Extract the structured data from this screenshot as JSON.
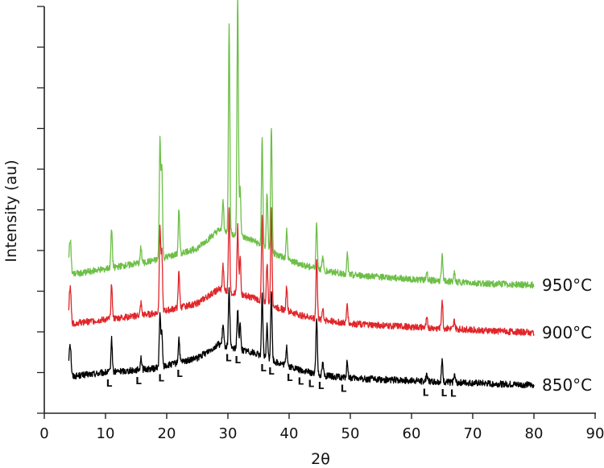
{
  "chart_data": {
    "type": "line",
    "xlabel": "2θ",
    "ylabel": "Intensity (au)",
    "xlim": [
      0,
      90
    ],
    "xticks": [
      0,
      10,
      20,
      30,
      40,
      50,
      60,
      70,
      80,
      90
    ],
    "ylim": [
      0,
      100
    ],
    "y_tick_labels_shown": false,
    "grid": false,
    "legend": "labels at right end of each trace",
    "series": [
      {
        "name": "850°C",
        "color": "#000000",
        "baseline": [
          [
            4,
            9
          ],
          [
            10,
            10
          ],
          [
            18,
            11
          ],
          [
            25,
            13.5
          ],
          [
            28.5,
            17
          ],
          [
            31,
            16
          ],
          [
            34,
            15
          ],
          [
            38,
            12.5
          ],
          [
            42,
            10.5
          ],
          [
            46,
            9.2
          ],
          [
            50,
            8.6
          ],
          [
            60,
            8
          ],
          [
            70,
            7.4
          ],
          [
            80,
            6.9
          ]
        ],
        "peaks": [
          [
            4.3,
            6
          ],
          [
            11,
            8
          ],
          [
            15.8,
            3
          ],
          [
            18.9,
            13
          ],
          [
            19.2,
            8
          ],
          [
            22,
            6
          ],
          [
            29.2,
            5
          ],
          [
            30.2,
            14
          ],
          [
            31.6,
            10
          ],
          [
            32,
            6
          ],
          [
            35.6,
            15
          ],
          [
            36.4,
            8
          ],
          [
            37.1,
            17
          ],
          [
            39.6,
            5
          ],
          [
            44.5,
            14
          ],
          [
            45.5,
            3
          ],
          [
            49.5,
            4
          ],
          [
            62.5,
            2
          ],
          [
            65,
            5
          ],
          [
            67,
            2
          ]
        ]
      },
      {
        "name": "900°C",
        "color": "#e0262a",
        "baseline": [
          [
            4,
            22
          ],
          [
            10,
            23
          ],
          [
            18,
            24.5
          ],
          [
            25,
            27
          ],
          [
            28.5,
            30.5
          ],
          [
            31,
            29.5
          ],
          [
            34,
            28.5
          ],
          [
            38,
            26
          ],
          [
            42,
            24
          ],
          [
            46,
            22.8
          ],
          [
            50,
            22
          ],
          [
            60,
            21.2
          ],
          [
            70,
            20.5
          ],
          [
            80,
            19.8
          ]
        ],
        "peaks": [
          [
            4.3,
            7
          ],
          [
            11,
            9
          ],
          [
            15.8,
            3
          ],
          [
            18.9,
            21
          ],
          [
            19.2,
            15
          ],
          [
            22,
            9
          ],
          [
            29.2,
            6
          ],
          [
            30.2,
            21
          ],
          [
            31.6,
            17
          ],
          [
            32,
            9
          ],
          [
            35.6,
            21
          ],
          [
            36.4,
            10
          ],
          [
            37.1,
            24
          ],
          [
            39.6,
            6
          ],
          [
            44.5,
            15
          ],
          [
            45.5,
            3
          ],
          [
            49.5,
            5
          ],
          [
            62.5,
            2
          ],
          [
            65,
            7
          ],
          [
            67,
            2
          ]
        ]
      },
      {
        "name": "950°C",
        "color": "#6dbf47",
        "baseline": [
          [
            4,
            34
          ],
          [
            10,
            35.5
          ],
          [
            18,
            37.5
          ],
          [
            25,
            40.5
          ],
          [
            28.5,
            45
          ],
          [
            31,
            44
          ],
          [
            34,
            42.5
          ],
          [
            38,
            39
          ],
          [
            42,
            36.5
          ],
          [
            46,
            35
          ],
          [
            50,
            34
          ],
          [
            60,
            33
          ],
          [
            70,
            32
          ],
          [
            80,
            31.5
          ]
        ],
        "peaks": [
          [
            4.3,
            7
          ],
          [
            11,
            10
          ],
          [
            15.8,
            4
          ],
          [
            18.9,
            29
          ],
          [
            19.2,
            23
          ],
          [
            22,
            11
          ],
          [
            29.2,
            8
          ],
          [
            30.2,
            51
          ],
          [
            31.6,
            59
          ],
          [
            32,
            12
          ],
          [
            35.6,
            27
          ],
          [
            36.4,
            14
          ],
          [
            37.1,
            31
          ],
          [
            39.6,
            7
          ],
          [
            44.5,
            11
          ],
          [
            45.5,
            3
          ],
          [
            49.5,
            5
          ],
          [
            62.5,
            2
          ],
          [
            65,
            6
          ],
          [
            67,
            2
          ]
        ]
      }
    ],
    "phase_markers": {
      "symbol": "L",
      "positions": [
        10.6,
        15.4,
        19.1,
        22.1,
        30.1,
        31.6,
        35.8,
        37.1,
        40.1,
        41.9,
        43.6,
        45.2,
        48.9,
        62.3,
        65.3,
        66.8
      ]
    }
  }
}
